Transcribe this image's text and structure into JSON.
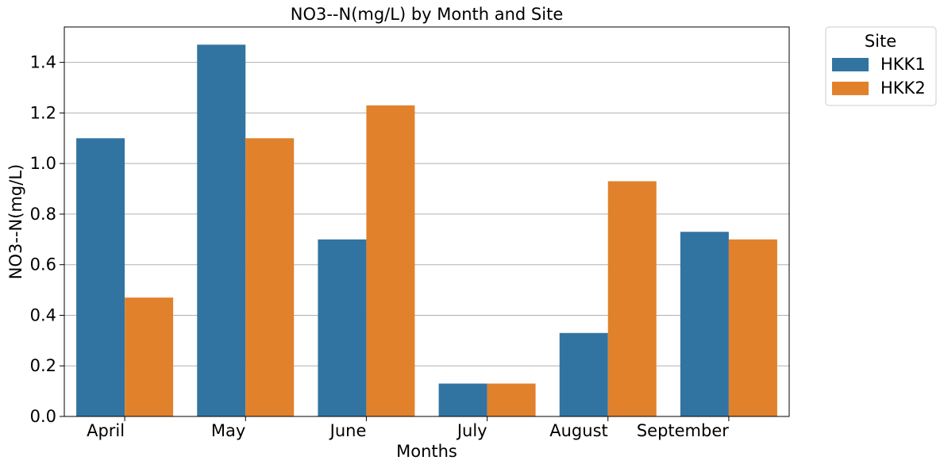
{
  "chart_data": {
    "type": "bar",
    "title": "NO3--N(mg/L) by Month and Site",
    "xlabel": "Months",
    "ylabel": "NO3--N(mg/L)",
    "categories": [
      "April",
      "May",
      "June",
      "July",
      "August",
      "September"
    ],
    "series": [
      {
        "name": "HKK1",
        "color": "#3274a1",
        "values": [
          1.1,
          1.47,
          0.7,
          0.13,
          0.33,
          0.73
        ]
      },
      {
        "name": "HKK2",
        "color": "#e1812c",
        "values": [
          0.47,
          1.1,
          1.23,
          0.13,
          0.93,
          0.7
        ]
      }
    ],
    "ylim": [
      0,
      1.54
    ],
    "yticks": [
      "0.0",
      "0.2",
      "0.4",
      "0.6",
      "0.8",
      "1.0",
      "1.2",
      "1.4"
    ],
    "grid": "horizontal",
    "legend": {
      "title": "Site",
      "placement": "outside-top-right"
    }
  }
}
